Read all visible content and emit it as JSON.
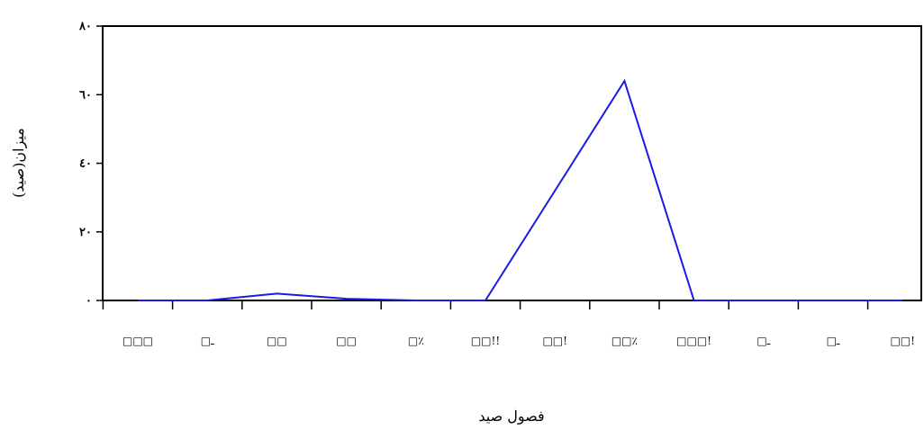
{
  "chart_data": {
    "type": "line",
    "title": "",
    "xlabel": "فصول صيد",
    "ylabel": "ميزان(صيد)",
    "categories": [
      "□□□",
      "□ـ",
      "□□",
      "□□",
      "□٪",
      "□□!!",
      "□□!",
      "□□٪",
      "□□□!",
      "□ـ",
      "□ـ",
      "□□!"
    ],
    "ylim": [
      0,
      80
    ],
    "yticks": [
      "٠",
      "٢٠",
      "٤٠",
      "٦٠",
      "٨٠"
    ],
    "ytick_values": [
      0,
      20,
      40,
      60,
      80
    ],
    "series": [
      {
        "color": "#1a1ae6",
        "values": [
          0,
          0,
          2,
          0.5,
          0,
          0,
          32,
          64,
          0,
          0,
          0,
          0
        ]
      }
    ],
    "grid": false,
    "legend": "none"
  }
}
